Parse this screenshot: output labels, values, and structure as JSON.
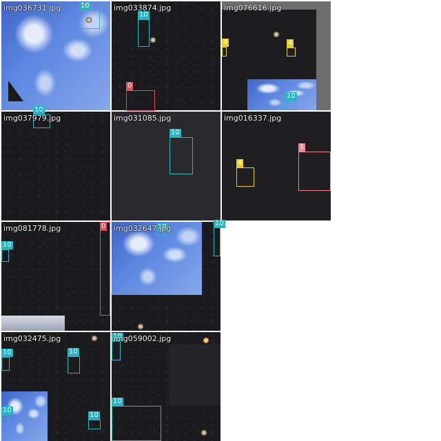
{
  "colors": {
    "class_10": "#2bb3c0",
    "class_0": "#e0505a",
    "class_1": "#f08a90",
    "class_4": "#e8d020",
    "background": "#ffffff",
    "tile_dark": "#1b1b1d",
    "earth": "#4f7ad8"
  },
  "tiles": [
    {
      "filename": "img036731.jpg",
      "boxes": [
        {
          "label": "10"
        }
      ]
    },
    {
      "filename": "img033874.jpg",
      "boxes": [
        {
          "label": "10"
        },
        {
          "label": "0"
        }
      ]
    },
    {
      "filename": "img076616.jpg",
      "boxes": [
        {
          "label": "4"
        },
        {
          "label": "4"
        },
        {
          "label": "10"
        }
      ]
    },
    {
      "filename": "img037979.jpg",
      "boxes": [
        {
          "label": "10"
        }
      ]
    },
    {
      "filename": "img031085.jpg",
      "boxes": [
        {
          "label": "10"
        }
      ]
    },
    {
      "filename": "img016337.jpg",
      "boxes": [
        {
          "label": "4"
        },
        {
          "label": "1"
        }
      ]
    },
    {
      "filename": "img081778.jpg",
      "boxes": [
        {
          "label": "10"
        },
        {
          "label": "0"
        }
      ]
    },
    {
      "filename": "img032647.jpg",
      "boxes": [
        {
          "label": "10"
        },
        {
          "label": "10"
        }
      ]
    },
    {
      "filename": "img032475.jpg",
      "boxes": [
        {
          "label": "10"
        },
        {
          "label": "10"
        },
        {
          "label": "10"
        },
        {
          "label": "10"
        }
      ]
    },
    {
      "filename": "img059002.jpg",
      "boxes": [
        {
          "label": "10"
        },
        {
          "label": "10"
        }
      ]
    }
  ]
}
